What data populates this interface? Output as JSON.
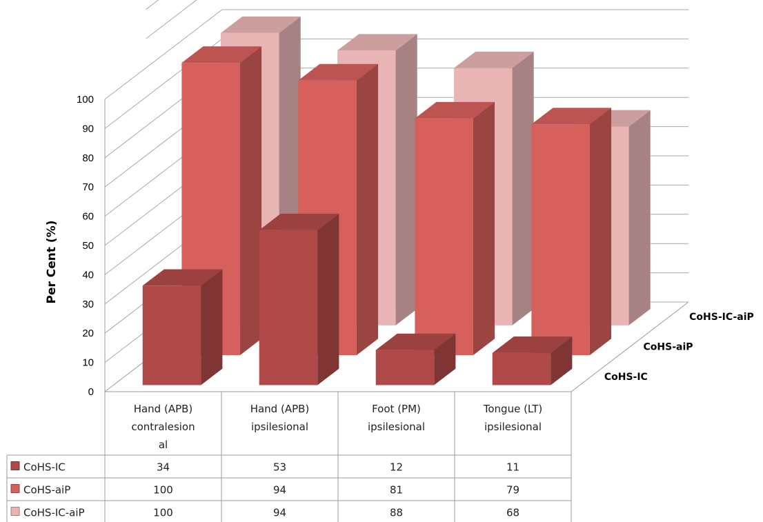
{
  "chart_data": {
    "type": "bar",
    "style": "3d-clustered-column-with-data-table",
    "categories": [
      "Hand (APB) contralesional",
      "Hand (APB) ipsilesional",
      "Foot (PM) ipsilesional",
      "Tongue (LT) ipsilesional"
    ],
    "category_lines": [
      [
        "Hand (APB)",
        "contralesion",
        "al"
      ],
      [
        "Hand (APB)",
        "ipsilesional"
      ],
      [
        "Foot (PM)",
        "ipsilesional"
      ],
      [
        "Tongue (LT)",
        "ipsilesional"
      ]
    ],
    "series": [
      {
        "name": "CoHS-IC",
        "values": [
          34,
          53,
          12,
          11
        ],
        "color": "#b04a48"
      },
      {
        "name": "CoHS-aiP",
        "values": [
          100,
          94,
          81,
          79
        ],
        "color": "#d6605c"
      },
      {
        "name": "CoHS-IC-aiP",
        "values": [
          100,
          94,
          88,
          68
        ],
        "color": "#e8b4b4"
      }
    ],
    "ylabel": "Per Cent (%)",
    "ylim": [
      0,
      100
    ],
    "yticks": [
      "0",
      "10",
      "20",
      "30",
      "40",
      "50",
      "60",
      "70",
      "80",
      "90",
      "100"
    ],
    "grid": true,
    "legend": "data-table"
  }
}
